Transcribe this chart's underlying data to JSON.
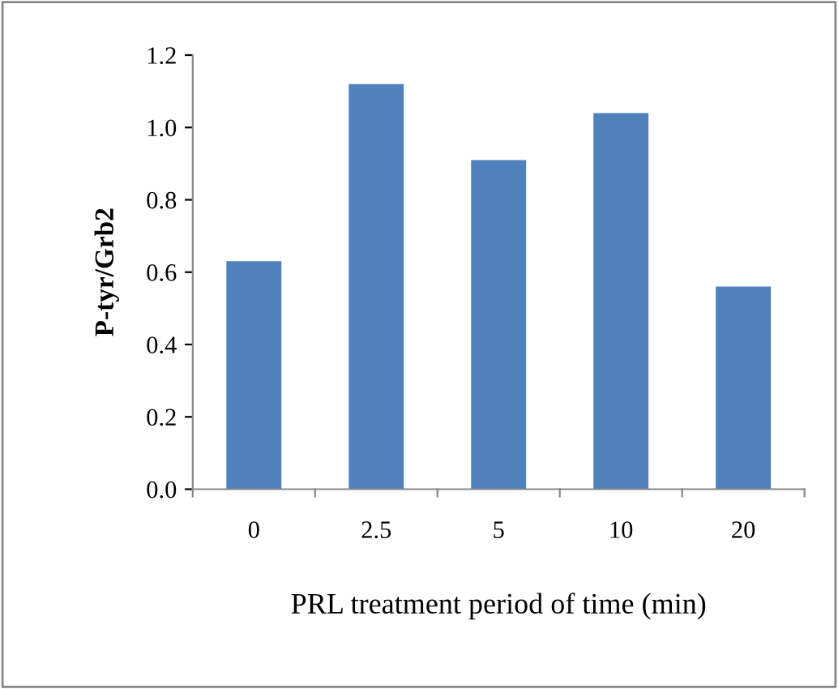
{
  "chart_data": {
    "type": "bar",
    "xlabel": "PRL treatment period of time (min)",
    "ylabel": "P-tyr/Grb2",
    "categories": [
      "0",
      "2.5",
      "5",
      "10",
      "20"
    ],
    "values": [
      0.63,
      1.12,
      0.91,
      1.04,
      0.56
    ],
    "color": "#4f81bd",
    "ylim": [
      0,
      1.2
    ],
    "yticks": [
      {
        "value": 0,
        "label": "0.0"
      },
      {
        "value": 0.2,
        "label": "0.2"
      },
      {
        "value": 0.4,
        "label": "0.4"
      },
      {
        "value": 0.6,
        "label": "0.6"
      },
      {
        "value": 0.8,
        "label": "0.8"
      },
      {
        "value": 1.0,
        "label": "1.0"
      },
      {
        "value": 1.2,
        "label": "1.2"
      }
    ],
    "grid": false,
    "legend": false
  }
}
